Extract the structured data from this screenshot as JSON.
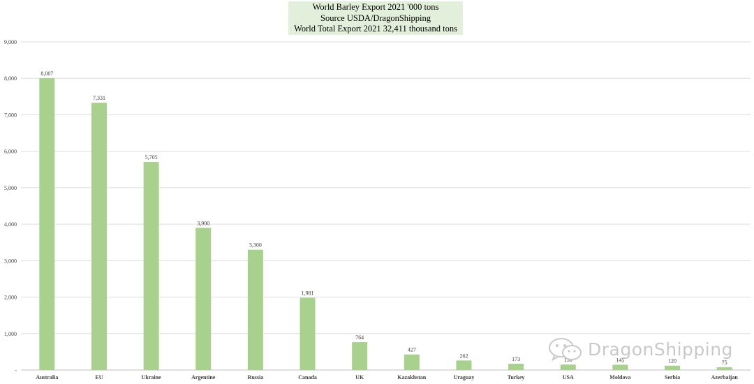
{
  "chart_data": {
    "type": "bar",
    "title": [
      "World Barley Export 2021 '000 tons",
      "Source USDA/DragonShipping",
      "World Total Export 2021  32,411 thousand tons"
    ],
    "categories": [
      "Australia",
      "EU",
      "Ukraine",
      "Argentine",
      "Russia",
      "Canada",
      "UK",
      "Kazakhstan",
      "Uraguay",
      "Turkey",
      "USA",
      "Moldova",
      "Serbia",
      "Azerbaijan"
    ],
    "values": [
      8007,
      7331,
      5705,
      3900,
      3300,
      1981,
      764,
      427,
      262,
      173,
      150,
      145,
      120,
      75
    ],
    "data_labels": [
      "8,007",
      "7,331",
      "5,705",
      "3,900",
      "3,300",
      "1,981",
      "764",
      "427",
      "262",
      "173",
      "150",
      "145",
      "120",
      "75"
    ],
    "y_ticks": [
      "-",
      "1,000",
      "2,000",
      "3,000",
      "4,000",
      "5,000",
      "6,000",
      "7,000",
      "8,000",
      "9,000"
    ],
    "ylim": [
      0,
      9000
    ],
    "grid": true,
    "legend": "none",
    "bar_color": "#a9d18e"
  },
  "watermark": {
    "icon": "wechat-icon",
    "text": "DragonShipping"
  }
}
